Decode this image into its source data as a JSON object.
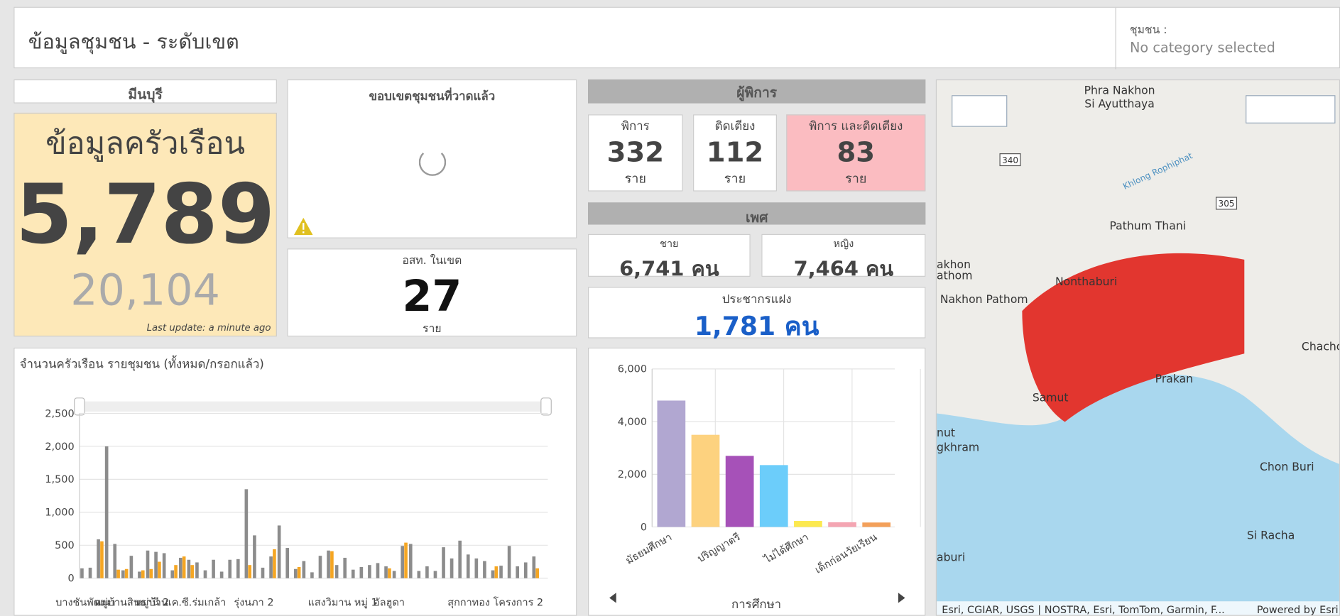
{
  "header": {
    "title": "ข้อมูลชุมชน - ระดับเขต",
    "filter_label": "ชุมชน :",
    "filter_value": "No category selected"
  },
  "district": "มีนบุรี",
  "household": {
    "title": "ข้อมูลครัวเรือน",
    "total": "5,789",
    "secondary": "20,104",
    "updated": "Last update: a minute ago"
  },
  "boundary": {
    "title": "ขอบเขตชุมชนที่วาดแล้ว"
  },
  "volunteers": {
    "label": "อสท. ในเขต",
    "value": "27",
    "unit": "ราย"
  },
  "disabled": {
    "header": "ผู้พิการ",
    "cards": [
      {
        "label": "พิการ",
        "value": "332",
        "unit": "ราย"
      },
      {
        "label": "ติดเตียง",
        "value": "112",
        "unit": "ราย"
      },
      {
        "label": "พิการ และติดเตียง",
        "value": "83",
        "unit": "ราย"
      }
    ]
  },
  "gender": {
    "header": "เพศ",
    "cards": [
      {
        "label": "ชาย",
        "value": "6,741 คน"
      },
      {
        "label": "หญิง",
        "value": "7,464 คน"
      }
    ]
  },
  "hidden_population": {
    "label": "ประชากรแฝง",
    "value": "1,781 คน"
  },
  "household_chart": {
    "type": "bar",
    "title": "จำนวนครัวเรือน รายชุมชน (ทั้งหมด/กรอกแล้ว)",
    "categories": [
      "บางชันพัฒนา",
      null,
      null,
      null,
      null,
      null,
      null,
      "หมู่บ้านสินธานี 2",
      null,
      null,
      null,
      null,
      "หมู่บ้านเค.ซี.ร่มเกล้า",
      null,
      null,
      null,
      null,
      null,
      null,
      null,
      null,
      null,
      null,
      null,
      "รุ่งนภา 2",
      null,
      null,
      null,
      null,
      null,
      null,
      null,
      null,
      "แสงวิมาน หมู่ 1",
      null,
      null,
      null,
      null,
      null,
      null,
      null,
      "อัลฮูดา",
      null,
      null,
      null,
      null,
      null,
      null,
      null,
      null,
      "สุกกาทอง โครงการ 2",
      null,
      null,
      null,
      null,
      null,
      null
    ],
    "series": [
      {
        "color": "#8c8c8c",
        "values": [
          150,
          160,
          590,
          2000,
          520,
          120,
          340,
          100,
          420,
          400,
          380,
          120,
          310,
          280,
          240,
          120,
          280,
          100,
          280,
          290,
          1350,
          650,
          160,
          330,
          800,
          460,
          140,
          260,
          90,
          340,
          420,
          200,
          310,
          130,
          170,
          200,
          230,
          180,
          110,
          490,
          520,
          110,
          180,
          110,
          470,
          300,
          570,
          360,
          300,
          260,
          120,
          190,
          490,
          180,
          240,
          330
        ]
      },
      {
        "color": "#f5a623",
        "values": [
          0,
          0,
          560,
          0,
          130,
          140,
          0,
          120,
          140,
          250,
          0,
          200,
          330,
          200,
          0,
          0,
          0,
          0,
          0,
          0,
          200,
          0,
          0,
          440,
          0,
          0,
          170,
          0,
          0,
          0,
          410,
          0,
          0,
          0,
          0,
          0,
          0,
          150,
          0,
          540,
          0,
          0,
          0,
          0,
          0,
          0,
          0,
          0,
          0,
          0,
          180,
          0,
          0,
          0,
          0,
          150
        ]
      }
    ],
    "ylim": [
      0,
      2500
    ],
    "yticks": [
      0,
      500,
      {
        "value": 1000,
        "label": "1,000"
      },
      {
        "value": 1500,
        "label": "1,500"
      },
      {
        "value": 2000,
        "label": "2,000"
      },
      {
        "value": 2500,
        "label": "2,500"
      }
    ],
    "grid": true
  },
  "education_chart": {
    "type": "bar",
    "x_label": "การศึกษา",
    "categories": [
      "มัธยมศึกษา",
      null,
      "ปริญญาตรี",
      null,
      "ไม่ได้ศึกษา",
      null,
      "เด็กก่อนวัยเรียน"
    ],
    "values": [
      4800,
      3500,
      2700,
      2350,
      230,
      180,
      170
    ],
    "colors": [
      "#b1a7d1",
      "#fdd27f",
      "#a651b8",
      "#6ccdfa",
      "#fce94f",
      "#f4a5b2",
      "#f3a05a"
    ],
    "ylim": [
      0,
      6000
    ],
    "yticks": [
      0,
      {
        "value": 2000,
        "label": "2,000"
      },
      {
        "value": 4000,
        "label": "4,000"
      },
      {
        "value": 6000,
        "label": "6,000"
      }
    ],
    "grid": true
  },
  "map": {
    "places": [
      "Phra Nakhon",
      "Si Ayutthaya",
      "Pathum Thani",
      "Nonthaburi",
      "akhon",
      "athom",
      "Nakhon Pathom",
      "Chachoe",
      "Samut",
      "Prakan",
      "nut",
      "gkhram",
      "Chon Buri",
      "Si Racha",
      "aburi"
    ],
    "roads": [
      "340",
      "305"
    ],
    "canal": "Khlong Rophiphat",
    "attribution": "Esri, CGIAR, USGS | NOSTRA, Esri, TomTom, Garmin, F...",
    "powered": "Powered by Esri"
  }
}
